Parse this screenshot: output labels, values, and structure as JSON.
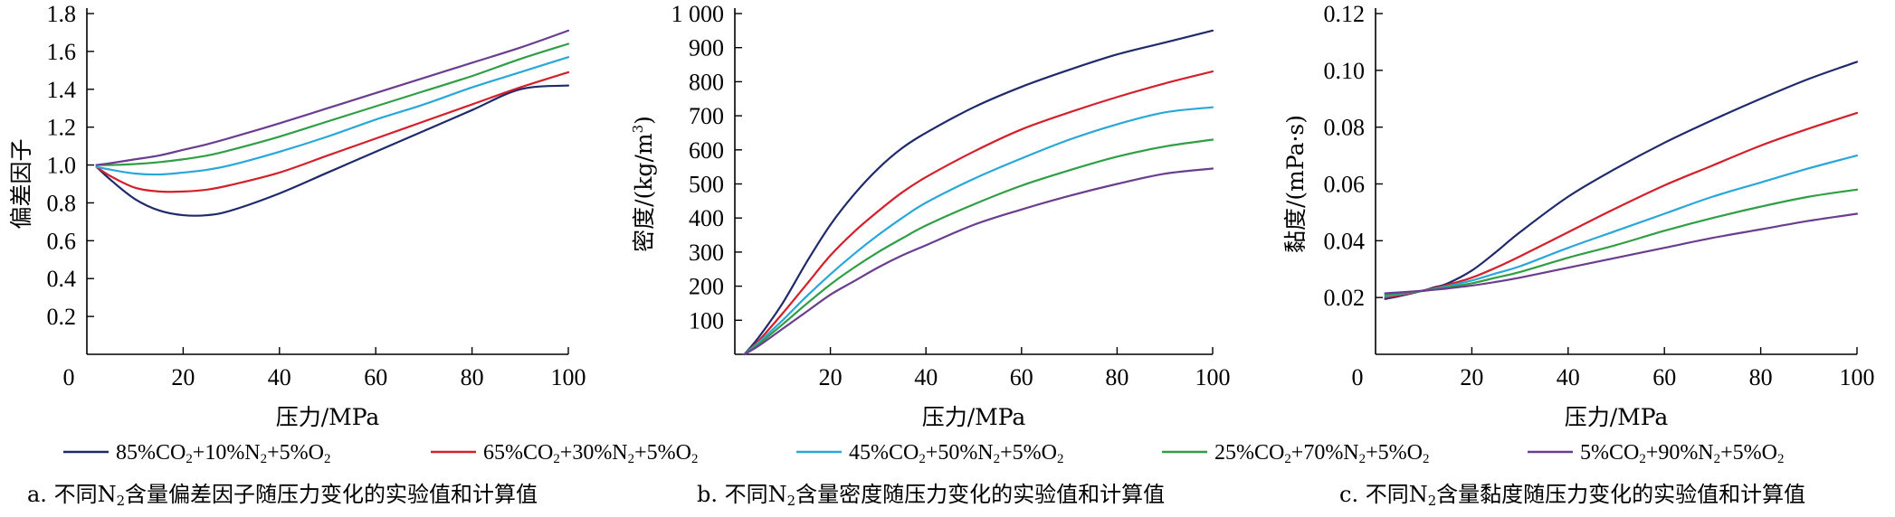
{
  "chart_data": [
    {
      "type": "line",
      "caption": "a. 不同N₂含量偏差因子随压力变化的实验值和计算值",
      "xlabel": "压力/MPa",
      "ylabel": "偏差因子",
      "xlim": [
        0,
        100
      ],
      "ylim": [
        0,
        1.8
      ],
      "xticks": [
        0,
        20,
        40,
        60,
        80,
        100
      ],
      "xtick_labels": [
        "0",
        "20",
        "40",
        "60",
        "80",
        "100"
      ],
      "yticks": [
        0.2,
        0.4,
        0.6,
        0.8,
        1.0,
        1.2,
        1.4,
        1.6,
        1.8
      ],
      "ytick_labels": [
        "0.2",
        "0.4",
        "0.6",
        "0.8",
        "1.0",
        "1.2",
        "1.4",
        "1.6",
        "1.8"
      ],
      "x": [
        2,
        5,
        10,
        15,
        20,
        25,
        30,
        40,
        50,
        60,
        70,
        80,
        90,
        100
      ],
      "series": [
        {
          "name": "85%CO₂+10%N₂+5%O₂",
          "color": "#1f2a6b",
          "values": [
            0.99,
            0.92,
            0.82,
            0.76,
            0.735,
            0.735,
            0.76,
            0.85,
            0.96,
            1.07,
            1.18,
            1.29,
            1.4,
            1.42
          ]
        },
        {
          "name": "65%CO₂+30%N₂+5%O₂",
          "color": "#d3202a",
          "values": [
            0.99,
            0.94,
            0.88,
            0.86,
            0.86,
            0.87,
            0.895,
            0.96,
            1.05,
            1.14,
            1.23,
            1.32,
            1.41,
            1.49
          ]
        },
        {
          "name": "45%CO₂+50%N₂+5%O₂",
          "color": "#2aa7d9",
          "values": [
            0.99,
            0.975,
            0.955,
            0.95,
            0.96,
            0.975,
            1.0,
            1.07,
            1.15,
            1.24,
            1.32,
            1.41,
            1.49,
            1.57
          ]
        },
        {
          "name": "25%CO₂+70%N₂+5%O₂",
          "color": "#2f9e44",
          "values": [
            1.0,
            1.0,
            1.005,
            1.015,
            1.03,
            1.05,
            1.08,
            1.15,
            1.23,
            1.31,
            1.39,
            1.47,
            1.56,
            1.64
          ]
        },
        {
          "name": "5%CO₂+90%N₂+5%O₂",
          "color": "#6a3d8f",
          "values": [
            1.0,
            1.01,
            1.03,
            1.05,
            1.08,
            1.11,
            1.145,
            1.22,
            1.3,
            1.38,
            1.46,
            1.54,
            1.62,
            1.71
          ]
        }
      ]
    },
    {
      "type": "line",
      "caption": "b. 不同N₂含量密度随压力变化的实验值和计算值",
      "xlabel": "压力/MPa",
      "ylabel": "密度/(kg/m³)",
      "xlim": [
        0,
        100
      ],
      "ylim": [
        0,
        1000
      ],
      "xticks": [
        20,
        40,
        60,
        80,
        100
      ],
      "xtick_labels": [
        "20",
        "40",
        "60",
        "80",
        "100"
      ],
      "yticks": [
        100,
        200,
        300,
        400,
        500,
        600,
        700,
        800,
        900,
        1000
      ],
      "ytick_labels": [
        "100",
        "200",
        "300",
        "400",
        "500",
        "600",
        "700",
        "800",
        "900",
        "1 000"
      ],
      "x": [
        2,
        5,
        10,
        15,
        20,
        25,
        30,
        35,
        40,
        50,
        60,
        70,
        80,
        90,
        100
      ],
      "series": [
        {
          "name": "85%CO₂+10%N₂+5%O₂",
          "color": "#1f2a6b",
          "values": [
            0,
            50,
            150,
            270,
            380,
            470,
            545,
            605,
            650,
            725,
            785,
            835,
            880,
            915,
            950
          ]
        },
        {
          "name": "65%CO₂+30%N₂+5%O₂",
          "color": "#d3202a",
          "values": [
            0,
            40,
            120,
            205,
            290,
            360,
            420,
            475,
            520,
            595,
            660,
            710,
            755,
            795,
            830
          ]
        },
        {
          "name": "45%CO₂+50%N₂+5%O₂",
          "color": "#2aa7d9",
          "values": [
            0,
            35,
            100,
            170,
            235,
            295,
            350,
            400,
            445,
            515,
            575,
            630,
            675,
            710,
            725
          ]
        },
        {
          "name": "25%CO₂+70%N₂+5%O₂",
          "color": "#2f9e44",
          "values": [
            0,
            30,
            88,
            148,
            205,
            255,
            300,
            340,
            378,
            440,
            495,
            540,
            580,
            610,
            630
          ]
        },
        {
          "name": "5%CO₂+90%N₂+5%O₂",
          "color": "#6a3d8f",
          "values": [
            0,
            25,
            75,
            125,
            175,
            215,
            255,
            290,
            320,
            380,
            425,
            465,
            500,
            530,
            545
          ]
        }
      ]
    },
    {
      "type": "line",
      "caption": "c. 不同N₂含量黏度随压力变化的实验值和计算值",
      "xlabel": "压力/MPa",
      "ylabel": "黏度/(mPa·s)",
      "xlim": [
        0,
        100
      ],
      "ylim": [
        0,
        0.12
      ],
      "xticks": [
        0,
        20,
        40,
        60,
        80,
        100
      ],
      "xtick_labels": [
        "0",
        "20",
        "40",
        "60",
        "80",
        "100"
      ],
      "yticks": [
        0.02,
        0.04,
        0.06,
        0.08,
        0.1,
        0.12
      ],
      "ytick_labels": [
        "0.02",
        "0.04",
        "0.06",
        "0.08",
        "0.10",
        "0.12"
      ],
      "x": [
        2,
        5,
        10,
        12,
        15,
        20,
        25,
        30,
        40,
        50,
        60,
        70,
        80,
        90,
        100
      ],
      "series": [
        {
          "name": "85%CO₂+10%N₂+5%O₂",
          "color": "#1f2a6b",
          "values": [
            0.0195,
            0.0205,
            0.0225,
            0.0235,
            0.025,
            0.0295,
            0.036,
            0.043,
            0.0555,
            0.0655,
            0.0745,
            0.0825,
            0.09,
            0.097,
            0.103
          ]
        },
        {
          "name": "65%CO₂+30%N₂+5%O₂",
          "color": "#d3202a",
          "values": [
            0.02,
            0.0208,
            0.0225,
            0.0232,
            0.0245,
            0.027,
            0.0305,
            0.0345,
            0.043,
            0.0515,
            0.0595,
            0.0665,
            0.0735,
            0.0795,
            0.085
          ]
        },
        {
          "name": "45%CO₂+50%N₂+5%O₂",
          "color": "#2aa7d9",
          "values": [
            0.0205,
            0.0212,
            0.0224,
            0.023,
            0.024,
            0.026,
            0.0285,
            0.031,
            0.0375,
            0.0435,
            0.0495,
            0.0555,
            0.0605,
            0.0655,
            0.07
          ]
        },
        {
          "name": "25%CO₂+70%N₂+5%O₂",
          "color": "#2f9e44",
          "values": [
            0.021,
            0.0215,
            0.0223,
            0.0228,
            0.0236,
            0.025,
            0.027,
            0.029,
            0.034,
            0.0385,
            0.0435,
            0.048,
            0.052,
            0.0555,
            0.058
          ]
        },
        {
          "name": "5%CO₂+90%N₂+5%O₂",
          "color": "#6a3d8f",
          "values": [
            0.0215,
            0.0218,
            0.0224,
            0.0227,
            0.0232,
            0.0242,
            0.0255,
            0.027,
            0.0305,
            0.034,
            0.0375,
            0.041,
            0.044,
            0.047,
            0.0495
          ]
        }
      ]
    }
  ]
}
